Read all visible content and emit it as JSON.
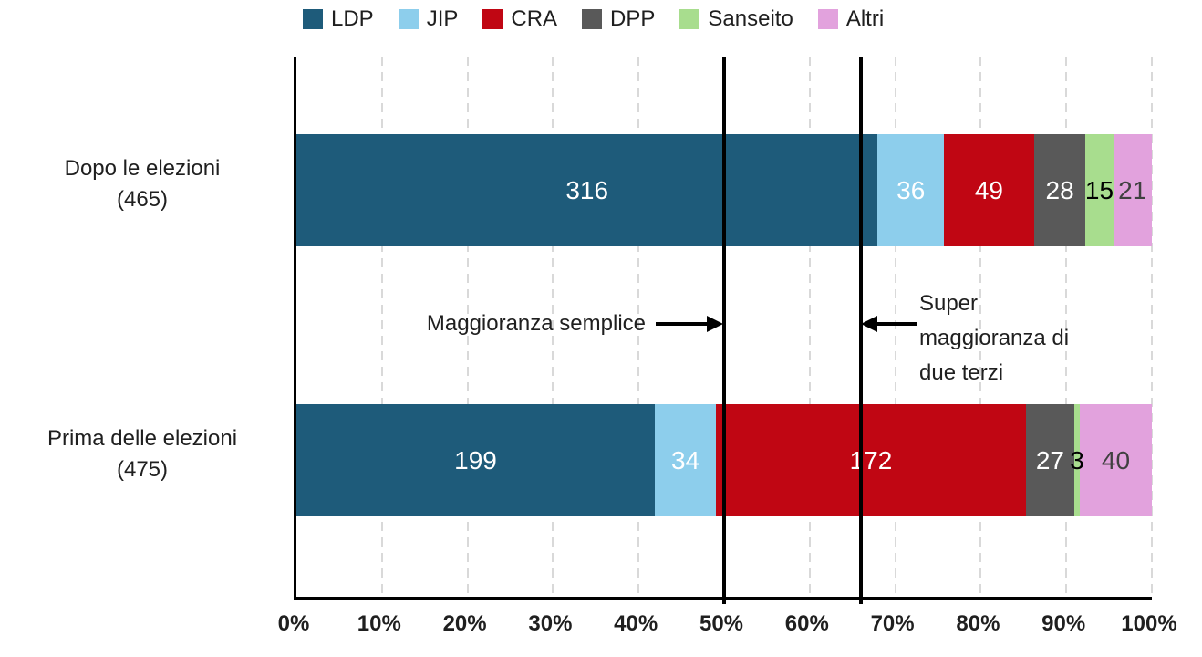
{
  "chart_data": {
    "type": "bar",
    "stacked": true,
    "orientation": "horizontal",
    "title": "",
    "legend_position": "top",
    "grid": "vertical-dashed",
    "x_axis": {
      "range": [
        0,
        100
      ],
      "unit": "%",
      "ticks": [
        {
          "label": "0%",
          "pct": 0
        },
        {
          "label": "10%",
          "pct": 10
        },
        {
          "label": "20%",
          "pct": 20
        },
        {
          "label": "30%",
          "pct": 30
        },
        {
          "label": "40%",
          "pct": 40
        },
        {
          "label": "50%",
          "pct": 50
        },
        {
          "label": "60%",
          "pct": 60
        },
        {
          "label": "70%",
          "pct": 70
        },
        {
          "label": "80%",
          "pct": 80
        },
        {
          "label": "90%",
          "pct": 90
        },
        {
          "label": "100%",
          "pct": 100
        }
      ]
    },
    "categories": [
      {
        "line1": "Dopo le elezioni",
        "line2": "(465)",
        "total": 465
      },
      {
        "line1": "Prima delle elezioni",
        "line2": "(475)",
        "total": 475
      }
    ],
    "series": [
      {
        "name": "LDP",
        "color": "#1E5B7A",
        "label_color": "#FFFFFF",
        "values": [
          316,
          199
        ]
      },
      {
        "name": "JIP",
        "color": "#8DCEEC",
        "label_color": "#FFFFFF",
        "values": [
          36,
          34
        ]
      },
      {
        "name": "CRA",
        "color": "#C00613",
        "label_color": "#FFFFFF",
        "values": [
          49,
          172
        ]
      },
      {
        "name": "DPP",
        "color": "#595959",
        "label_color": "#FFFFFF",
        "values": [
          28,
          27
        ]
      },
      {
        "name": "Sanseito",
        "color": "#A8DD8E",
        "label_color": "#000000",
        "values": [
          15,
          3
        ]
      },
      {
        "name": "Altri",
        "color": "#E2A2DD",
        "label_color": "#404040",
        "values": [
          21,
          40
        ]
      }
    ],
    "markers": [
      {
        "pct": 50,
        "label": "Maggioranza semplice"
      },
      {
        "pct": 66,
        "label": "Super maggioranza di due terzi",
        "label_lines": [
          "Super",
          "maggioranza di",
          "due terzi"
        ]
      }
    ]
  }
}
